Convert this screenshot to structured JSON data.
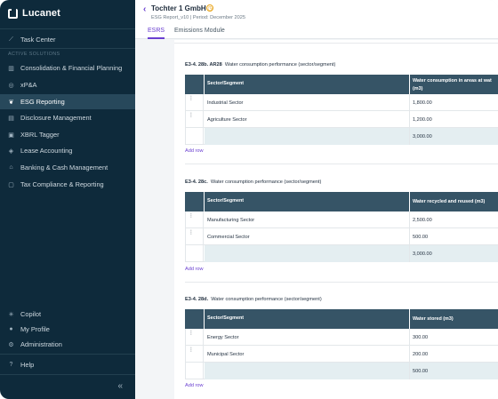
{
  "app": {
    "name": "Lucanet"
  },
  "sidebar": {
    "task_center": "Task Center",
    "section_label": "ACTIVE SOLUTIONS",
    "items": [
      {
        "label": "Consolidation & Financial Planning",
        "icon": "chart-icon"
      },
      {
        "label": "xP&A",
        "icon": "target-icon"
      },
      {
        "label": "ESG Reporting",
        "icon": "leaf-icon",
        "active": true
      },
      {
        "label": "Disclosure Management",
        "icon": "document-icon"
      },
      {
        "label": "XBRL Tagger",
        "icon": "tag-icon"
      },
      {
        "label": "Lease Accounting",
        "icon": "lease-icon"
      },
      {
        "label": "Banking & Cash Management",
        "icon": "bank-icon"
      },
      {
        "label": "Tax Compliance & Reporting",
        "icon": "tax-icon"
      }
    ],
    "bottom": [
      {
        "label": "Copilot",
        "icon": "sparkle-icon"
      },
      {
        "label": "My Profile",
        "icon": "user-icon"
      },
      {
        "label": "Administration",
        "icon": "gear-icon"
      }
    ],
    "help": "Help",
    "collapse": "«"
  },
  "header": {
    "back": "‹",
    "title": "Tochter 1 GmbH",
    "subtitle": "ESG Report_v10  |  Period: December 2025",
    "tabs": [
      "ESRS",
      "Emissions Module"
    ]
  },
  "sections": [
    {
      "code": "E3-4. 28b. AR28",
      "title": "Water consumption performance (sector/segment)",
      "col1": "Sector/Segment",
      "col2": "Water consumption in areas at wat",
      "col2b": "(m3)",
      "rows": [
        {
          "segment": "Industrial Sector",
          "value": "1,800.00"
        },
        {
          "segment": "Agriculture Sector",
          "value": "1,200.00"
        }
      ],
      "total": "3,000.00",
      "add_row": "Add row"
    },
    {
      "code": "E3-4. 28c.",
      "title": "Water consumption performance (sector/segment)",
      "col1": "Sector/Segment",
      "col2": "Water recycled and reused (m3)",
      "col2b": "",
      "rows": [
        {
          "segment": "Manufacturing Sector",
          "value": "2,500.00"
        },
        {
          "segment": "Commercial Sector",
          "value": "500.00"
        }
      ],
      "total": "3,000.00",
      "add_row": "Add row"
    },
    {
      "code": "E3-4. 28d.",
      "title": "Water consumption performance (sector/segment)",
      "col1": "Sector/Segment",
      "col2": "Water stored (m3)",
      "col2b": "",
      "rows": [
        {
          "segment": "Energy Sector",
          "value": "300.00"
        },
        {
          "segment": "Municipal Sector",
          "value": "200.00"
        }
      ],
      "total": "500.00",
      "add_row": "Add row"
    }
  ]
}
